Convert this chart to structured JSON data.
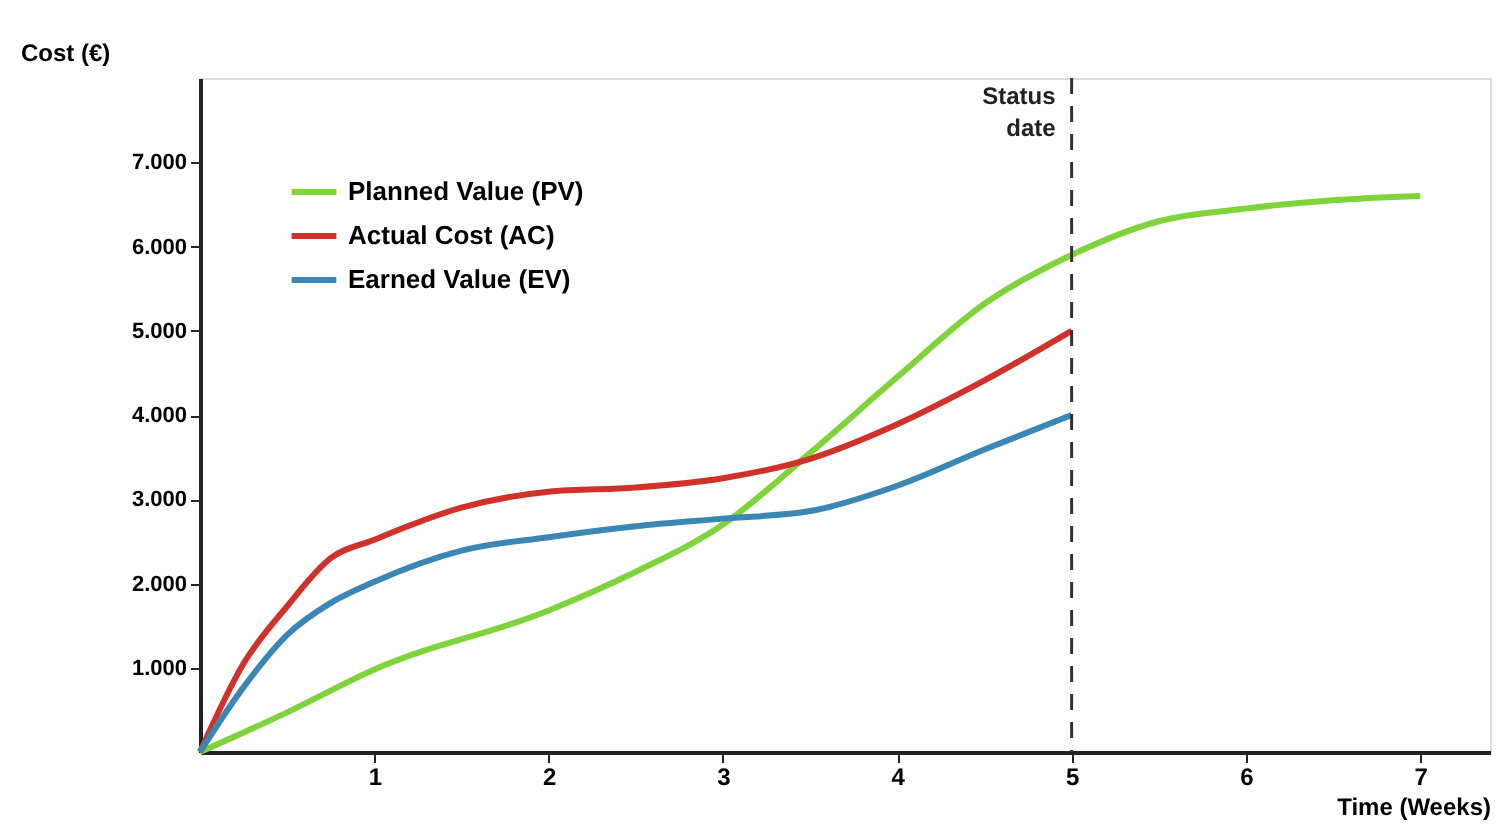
{
  "chart_data": {
    "type": "line",
    "xlabel": "Time (Weeks)",
    "ylabel": "Cost (€)",
    "xlim": [
      0,
      7.4
    ],
    "xticks": [
      1,
      2,
      3,
      4,
      5,
      6,
      7
    ],
    "ylim": [
      0,
      8000
    ],
    "yticks": [
      {
        "value": 1000,
        "label": "1.000"
      },
      {
        "value": 2000,
        "label": "2.000"
      },
      {
        "value": 3000,
        "label": "3.000"
      },
      {
        "value": 4000,
        "label": "4.000"
      },
      {
        "value": 5000,
        "label": "5.000"
      },
      {
        "value": 6000,
        "label": "6.000"
      },
      {
        "value": 7000,
        "label": "7.000"
      }
    ],
    "grid": false,
    "legend": "top left",
    "marker": "none",
    "line_style": "solid",
    "series": [
      {
        "name": "Planned Value (PV)",
        "color": "#7ed43a",
        "x": [
          0,
          0.5,
          1,
          2,
          2.5,
          3,
          3.5,
          4,
          4.5,
          5,
          5.5,
          6,
          6.5,
          7
        ],
        "values": [
          0,
          470,
          980,
          1680,
          2140,
          2700,
          3550,
          4450,
          5320,
          5900,
          6300,
          6450,
          6550,
          6600
        ]
      },
      {
        "name": "Actual Cost (AC)",
        "color": "#d0322b",
        "x": [
          0,
          0.25,
          0.5,
          0.75,
          1,
          1.5,
          2,
          2.5,
          3,
          3.5,
          4,
          4.5,
          5
        ],
        "values": [
          0,
          1050,
          1730,
          2300,
          2520,
          2900,
          3090,
          3140,
          3250,
          3480,
          3890,
          4410,
          5000
        ]
      },
      {
        "name": "Earned Value (EV)",
        "color": "#3a86b4",
        "x": [
          0,
          0.25,
          0.5,
          0.75,
          1,
          1.5,
          2,
          2.5,
          3,
          3.5,
          4,
          4.5,
          5
        ],
        "values": [
          0,
          770,
          1390,
          1770,
          2020,
          2390,
          2550,
          2680,
          2770,
          2860,
          3160,
          3590,
          4000
        ]
      }
    ],
    "ref_lines": [
      {
        "axis": "x",
        "value": 5,
        "label": "Status date",
        "color": "#333333",
        "line_style": "dashed"
      }
    ]
  }
}
